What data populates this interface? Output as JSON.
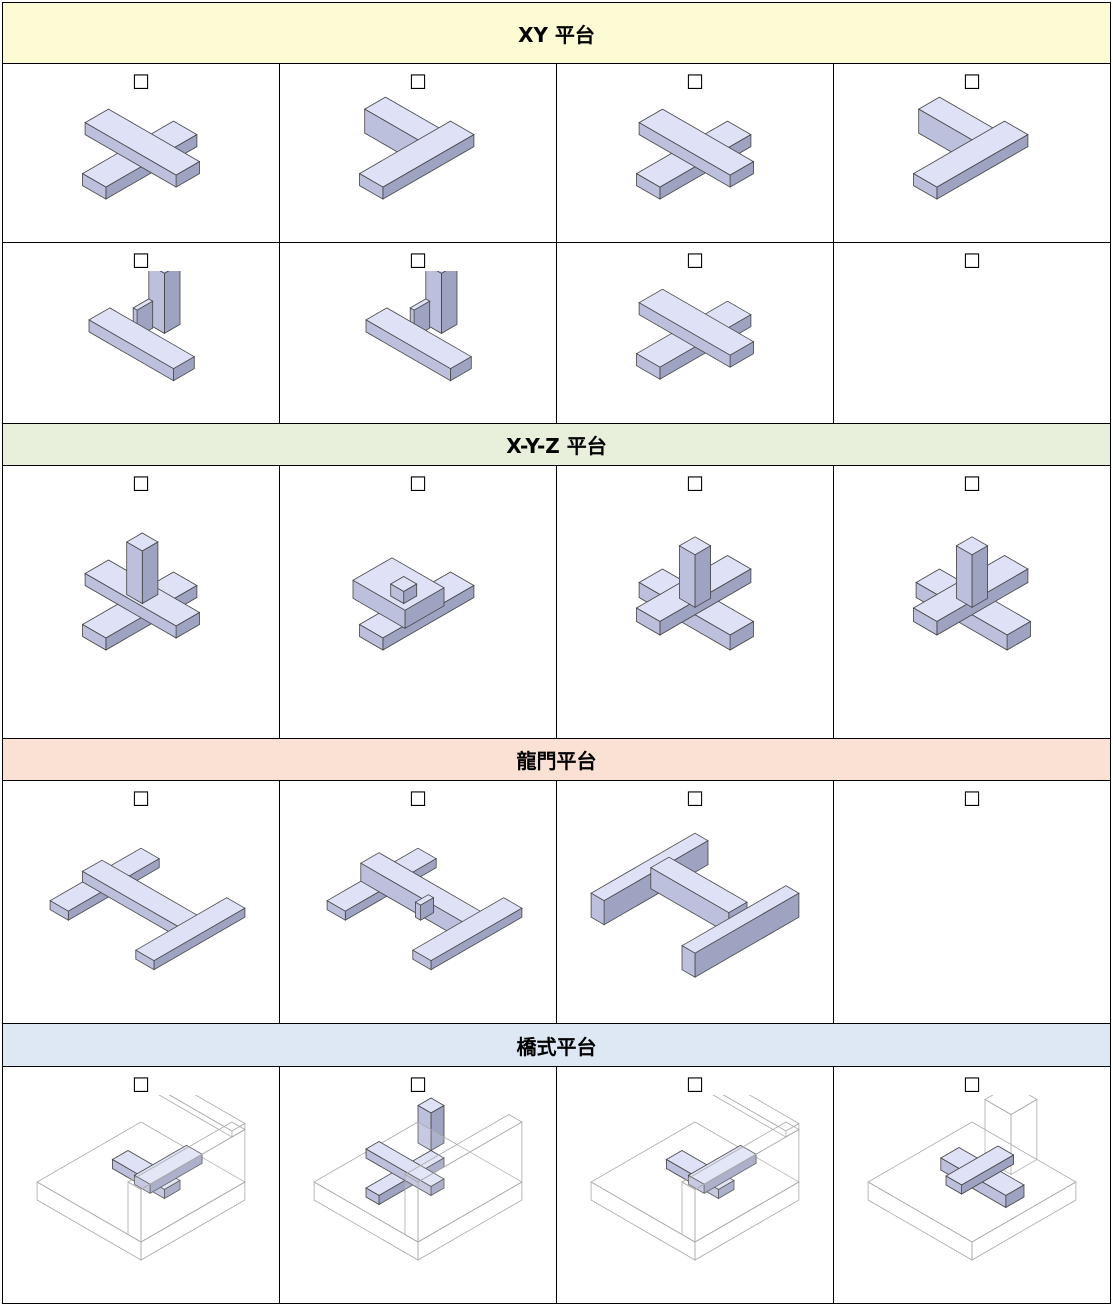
{
  "sections": [
    {
      "title": "XY 平台",
      "rows": [
        [
          "☐",
          "☐",
          "☐",
          "☐"
        ],
        [
          "☐",
          "☐",
          "☐",
          "☐"
        ]
      ]
    },
    {
      "title": "X-Y-Z 平台",
      "rows": [
        [
          "☐",
          "☐",
          "☐",
          "☐"
        ]
      ]
    },
    {
      "title": "龍門平台",
      "rows": [
        [
          "☐",
          "☐",
          "☐",
          "☐"
        ]
      ]
    },
    {
      "title": "橋式平台",
      "rows": [
        [
          "☐",
          "☐",
          "☐",
          "☐"
        ]
      ]
    }
  ]
}
